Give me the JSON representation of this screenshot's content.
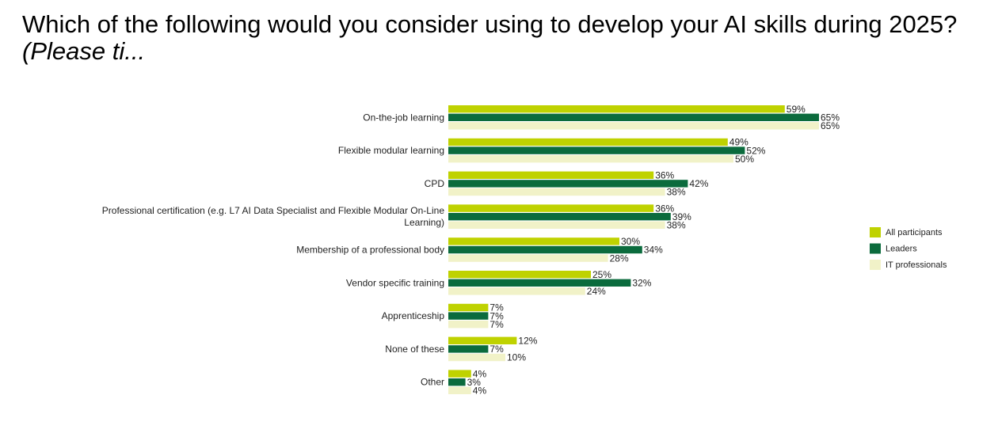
{
  "title": {
    "main": "Which of the following would you consider using to develop your AI skills during 2025? ",
    "italic": "(Please ti..."
  },
  "chart_data": {
    "type": "bar",
    "orientation": "horizontal",
    "categories": [
      [
        "On-the-job learning"
      ],
      [
        "Flexible modular learning"
      ],
      [
        "CPD"
      ],
      [
        "Professional certification (e.g. L7 AI Data Specialist and Flexible Modular On-Line",
        "Learning)"
      ],
      [
        "Membership of a professional body"
      ],
      [
        "Vendor specific training"
      ],
      [
        "Apprenticeship"
      ],
      [
        "None of these"
      ],
      [
        "Other"
      ]
    ],
    "series": [
      {
        "name": "All participants",
        "color": "#bfd200",
        "values": [
          59,
          49,
          36,
          36,
          30,
          25,
          7,
          12,
          4
        ]
      },
      {
        "name": "Leaders",
        "color": "#0b6b3d",
        "values": [
          65,
          52,
          42,
          39,
          34,
          32,
          7,
          7,
          3
        ]
      },
      {
        "name": "IT professionals",
        "color": "#f1f2c8",
        "values": [
          65,
          50,
          38,
          38,
          28,
          24,
          7,
          10,
          4
        ]
      }
    ],
    "value_suffix": "%",
    "xlim": [
      0,
      100
    ],
    "grid": false,
    "legend": "right"
  }
}
